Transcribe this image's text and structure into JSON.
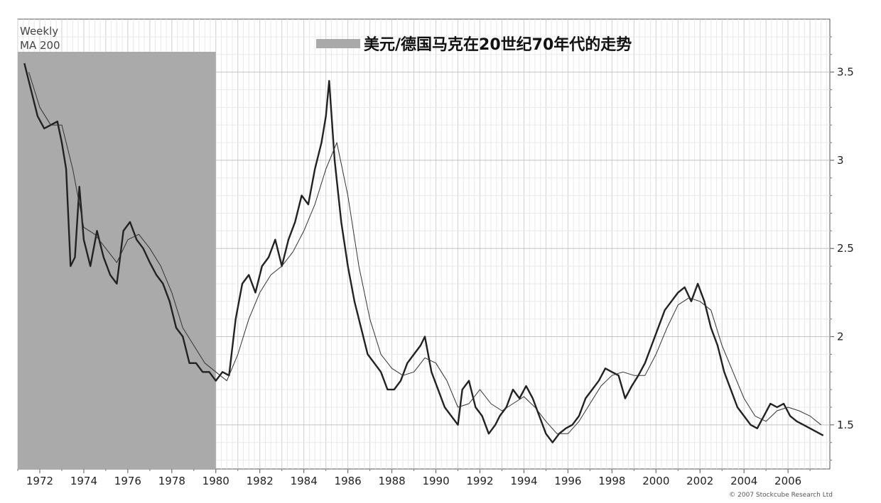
{
  "chart_data": {
    "type": "line",
    "title": "美元/德国马克在20世纪70年代的走势",
    "corner_labels": [
      "Weekly",
      "MA 200"
    ],
    "copyright": "© 2007 Stockcube Research Ltd",
    "x_tick_labels": [
      "1972",
      "1974",
      "1976",
      "1978",
      "1980",
      "1982",
      "1984",
      "1986",
      "1988",
      "1990",
      "1992",
      "1994",
      "1996",
      "1998",
      "2000",
      "2002",
      "2004",
      "2006"
    ],
    "y_tick_labels": [
      "1.5",
      "2",
      "2.5",
      "3",
      "3.5"
    ],
    "xlim": [
      1971.0,
      2007.9
    ],
    "ylim": [
      1.25,
      3.8
    ],
    "y_axis_position": "right",
    "grid": true,
    "highlight_region": {
      "x": [
        1971.0,
        1980.0
      ],
      "legend_label": "美元/德国马克在20世纪70年代的走势"
    },
    "series": [
      {
        "style": "price",
        "x": [
          1971.3,
          1971.6,
          1971.9,
          1972.2,
          1972.5,
          1972.8,
          1973.0,
          1973.2,
          1973.4,
          1973.6,
          1973.8,
          1974.0,
          1974.3,
          1974.6,
          1974.9,
          1975.2,
          1975.5,
          1975.8,
          1976.1,
          1976.4,
          1976.7,
          1977.0,
          1977.3,
          1977.6,
          1977.9,
          1978.2,
          1978.5,
          1978.8,
          1979.1,
          1979.4,
          1979.7,
          1980.0,
          1980.3,
          1980.6,
          1980.9,
          1981.2,
          1981.5,
          1981.8,
          1982.1,
          1982.4,
          1982.7,
          1983.0,
          1983.3,
          1983.6,
          1983.9,
          1984.2,
          1984.5,
          1984.8,
          1985.0,
          1985.15,
          1985.4,
          1985.7,
          1986.0,
          1986.3,
          1986.6,
          1986.9,
          1987.2,
          1987.5,
          1987.8,
          1988.1,
          1988.4,
          1988.7,
          1989.0,
          1989.3,
          1989.5,
          1989.8,
          1990.1,
          1990.4,
          1990.7,
          1991.0,
          1991.2,
          1991.5,
          1991.8,
          1992.1,
          1992.4,
          1992.7,
          1992.9,
          1993.2,
          1993.5,
          1993.8,
          1994.1,
          1994.4,
          1994.7,
          1995.0,
          1995.3,
          1995.6,
          1995.9,
          1996.2,
          1996.5,
          1996.8,
          1997.1,
          1997.4,
          1997.7,
          1998.0,
          1998.3,
          1998.6,
          1998.9,
          1999.2,
          1999.5,
          1999.8,
          2000.1,
          2000.4,
          2000.7,
          2001.0,
          2001.3,
          2001.6,
          2001.9,
          2002.2,
          2002.5,
          2002.8,
          2003.1,
          2003.4,
          2003.7,
          2004.0,
          2004.3,
          2004.6,
          2004.9,
          2005.2,
          2005.5,
          2005.8,
          2006.1,
          2006.4,
          2006.7,
          2007.0,
          2007.3,
          2007.6
        ],
        "y": [
          3.55,
          3.4,
          3.25,
          3.18,
          3.2,
          3.22,
          3.1,
          2.95,
          2.4,
          2.45,
          2.85,
          2.55,
          2.4,
          2.6,
          2.45,
          2.35,
          2.3,
          2.6,
          2.65,
          2.55,
          2.5,
          2.42,
          2.35,
          2.3,
          2.2,
          2.05,
          2.0,
          1.85,
          1.85,
          1.8,
          1.8,
          1.75,
          1.8,
          1.78,
          2.1,
          2.3,
          2.35,
          2.25,
          2.4,
          2.45,
          2.55,
          2.4,
          2.55,
          2.65,
          2.8,
          2.75,
          2.95,
          3.1,
          3.25,
          3.45,
          3.0,
          2.65,
          2.4,
          2.2,
          2.05,
          1.9,
          1.85,
          1.8,
          1.7,
          1.7,
          1.75,
          1.85,
          1.9,
          1.95,
          2.0,
          1.8,
          1.7,
          1.6,
          1.55,
          1.5,
          1.7,
          1.75,
          1.6,
          1.55,
          1.45,
          1.5,
          1.55,
          1.6,
          1.7,
          1.65,
          1.72,
          1.65,
          1.55,
          1.45,
          1.4,
          1.45,
          1.48,
          1.5,
          1.55,
          1.65,
          1.7,
          1.75,
          1.82,
          1.8,
          1.78,
          1.65,
          1.72,
          1.78,
          1.85,
          1.95,
          2.05,
          2.15,
          2.2,
          2.25,
          2.28,
          2.2,
          2.3,
          2.2,
          2.05,
          1.95,
          1.8,
          1.7,
          1.6,
          1.55,
          1.5,
          1.48,
          1.55,
          1.62,
          1.6,
          1.62,
          1.55,
          1.52,
          1.5,
          1.48,
          1.46,
          1.44
        ]
      },
      {
        "name": "MA 200",
        "style": "thin",
        "x": [
          1971.5,
          1972.0,
          1972.5,
          1973.0,
          1973.5,
          1974.0,
          1974.5,
          1975.0,
          1975.5,
          1976.0,
          1976.5,
          1977.0,
          1977.5,
          1978.0,
          1978.5,
          1979.0,
          1979.5,
          1980.0,
          1980.5,
          1981.0,
          1981.5,
          1982.0,
          1982.5,
          1983.0,
          1983.5,
          1984.0,
          1984.5,
          1985.0,
          1985.5,
          1986.0,
          1986.5,
          1987.0,
          1987.5,
          1988.0,
          1988.5,
          1989.0,
          1989.5,
          1990.0,
          1990.5,
          1991.0,
          1991.5,
          1992.0,
          1992.5,
          1993.0,
          1993.5,
          1994.0,
          1994.5,
          1995.0,
          1995.5,
          1996.0,
          1996.5,
          1997.0,
          1997.5,
          1998.0,
          1998.5,
          1999.0,
          1999.5,
          2000.0,
          2000.5,
          2001.0,
          2001.5,
          2002.0,
          2002.5,
          2003.0,
          2003.5,
          2004.0,
          2004.5,
          2005.0,
          2005.5,
          2006.0,
          2006.5,
          2007.0,
          2007.5
        ],
        "y": [
          3.5,
          3.3,
          3.2,
          3.2,
          2.95,
          2.62,
          2.58,
          2.5,
          2.42,
          2.55,
          2.58,
          2.5,
          2.4,
          2.25,
          2.05,
          1.95,
          1.85,
          1.8,
          1.75,
          1.9,
          2.1,
          2.25,
          2.35,
          2.4,
          2.48,
          2.6,
          2.75,
          2.95,
          3.1,
          2.8,
          2.4,
          2.1,
          1.9,
          1.82,
          1.78,
          1.8,
          1.88,
          1.85,
          1.75,
          1.6,
          1.62,
          1.7,
          1.62,
          1.58,
          1.62,
          1.66,
          1.6,
          1.52,
          1.45,
          1.45,
          1.52,
          1.62,
          1.72,
          1.78,
          1.8,
          1.78,
          1.78,
          1.9,
          2.05,
          2.18,
          2.22,
          2.2,
          2.15,
          1.95,
          1.8,
          1.65,
          1.55,
          1.52,
          1.58,
          1.6,
          1.58,
          1.55,
          1.5
        ]
      }
    ]
  }
}
